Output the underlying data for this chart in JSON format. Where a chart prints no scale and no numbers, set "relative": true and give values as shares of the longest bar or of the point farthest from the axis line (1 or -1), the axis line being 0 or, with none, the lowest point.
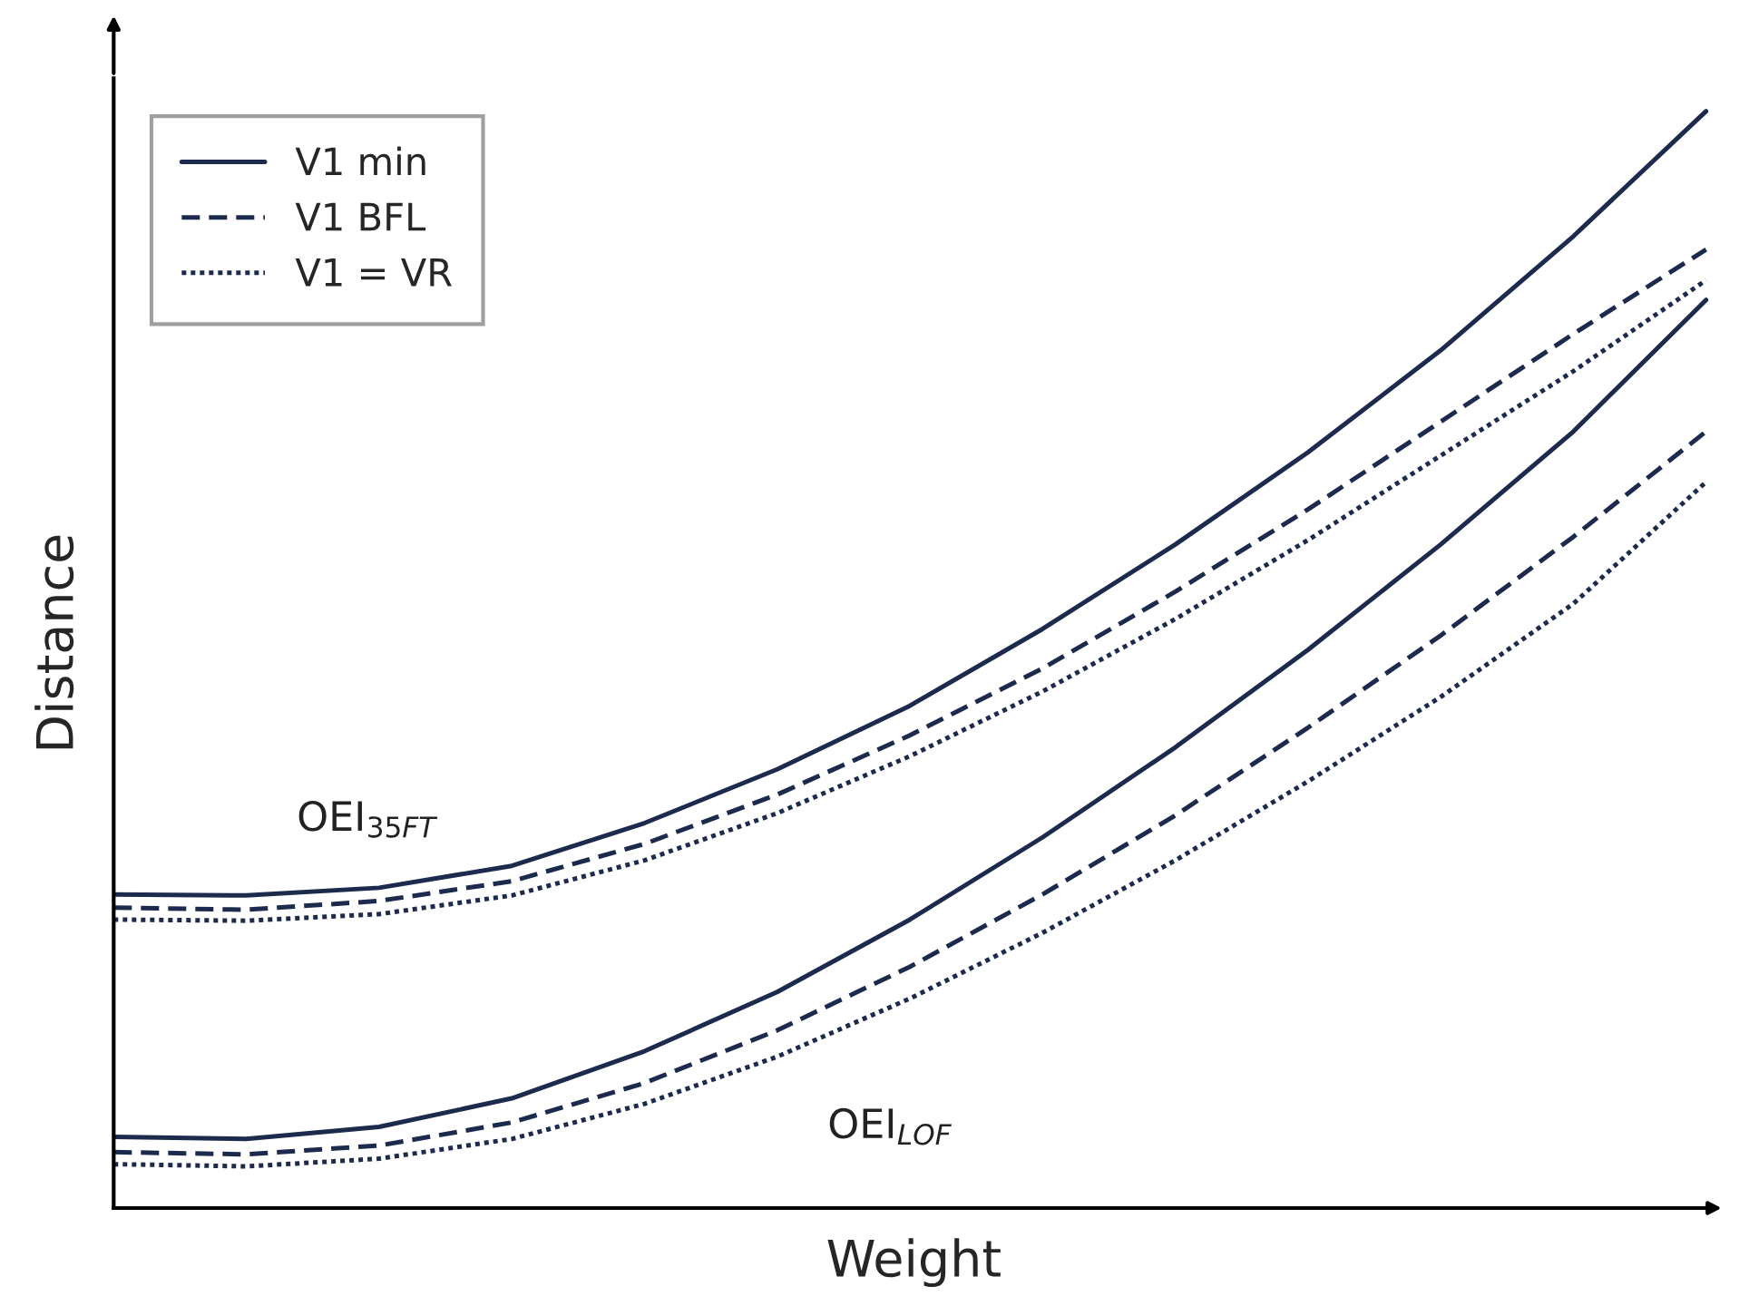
{
  "chart_data": {
    "type": "line",
    "relative": true,
    "xlabel": "Weight",
    "ylabel": "Distance",
    "categories": [
      null,
      null,
      null,
      null,
      null,
      null,
      null,
      null,
      null,
      null,
      null,
      null,
      null
    ],
    "legend": "top left",
    "marker": "none",
    "series": [
      {
        "name": "V1 min",
        "color": "#1c2a4d",
        "line_style": "solid",
        "values": [
          0.286,
          0.285,
          0.292,
          0.312,
          0.351,
          0.4,
          0.458,
          0.528,
          0.605,
          0.689,
          0.782,
          0.886,
          1
        ]
      },
      {
        "name": "V1 BFL",
        "color": "#1c2a4d",
        "line_style": "dashed",
        "values": [
          0.274,
          0.272,
          0.28,
          0.298,
          0.332,
          0.377,
          0.431,
          0.492,
          0.562,
          0.637,
          0.717,
          0.797,
          0.874
        ]
      },
      {
        "name": "V1 = VR",
        "color": "#1c2a4d",
        "line_style": "dotted",
        "values": [
          0.263,
          0.262,
          0.268,
          0.285,
          0.317,
          0.36,
          0.412,
          0.471,
          0.537,
          0.609,
          0.686,
          0.763,
          0.846
        ]
      },
      {
        "color": "#1c2a4d",
        "line_style": "solid",
        "values": [
          0.065,
          0.063,
          0.074,
          0.1,
          0.143,
          0.197,
          0.263,
          0.338,
          0.42,
          0.509,
          0.605,
          0.708,
          0.828
        ]
      },
      {
        "color": "#1c2a4d",
        "line_style": "dashed",
        "values": [
          0.051,
          0.049,
          0.057,
          0.078,
          0.114,
          0.162,
          0.22,
          0.286,
          0.358,
          0.438,
          0.522,
          0.612,
          0.708
        ]
      },
      {
        "color": "#1c2a4d",
        "line_style": "dotted",
        "values": [
          0.04,
          0.038,
          0.045,
          0.063,
          0.095,
          0.138,
          0.191,
          0.251,
          0.317,
          0.389,
          0.466,
          0.551,
          0.662
        ]
      }
    ],
    "annotations": [
      "OEI$_{35FT}$",
      "OEI$_{LOF}$"
    ]
  }
}
